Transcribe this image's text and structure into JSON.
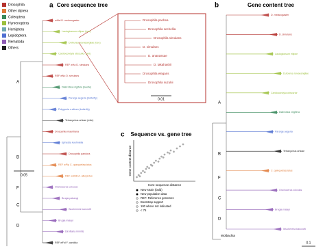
{
  "legend": [
    {
      "label": "Drosophila",
      "color": "#b5322e"
    },
    {
      "label": "Other diptera",
      "color": "#e07b39"
    },
    {
      "label": "Coleoptera",
      "color": "#3a8a5c"
    },
    {
      "label": "Hymenoptera",
      "color": "#9bbf3b"
    },
    {
      "label": "Hemiptera",
      "color": "#6fa8b0"
    },
    {
      "label": "Lepidoptera",
      "color": "#4f6fd1"
    },
    {
      "label": "Nematoda",
      "color": "#8e5bb5"
    },
    {
      "label": "Others",
      "color": "#222222"
    }
  ],
  "panel_a": {
    "letter": "a",
    "title": "Core sequence tree",
    "clades": [
      "A",
      "B",
      "F",
      "C",
      "D"
    ],
    "scale": "0.05",
    "labels": [
      "wMel D. melanogaster",
      "Lasioglossum ellipse (bee)",
      "Dufourea novaeangliae (bee)",
      "Cardiocondyla obscurior (ant)",
      "REF wHa D. simulans",
      "REF wNo D. simulans",
      "Diabrotica virgifera (beetle)",
      "Pararge aegeria (butterfly)",
      "Polygonia c-album (butterfly)",
      "Tetranychus urticae (mite)",
      "Drosophila mauritiana",
      "Ephestia kuehniella",
      "Drosophila pandora",
      "REF wPip C. quinquefasciatus",
      "REF wAlbB A. albopictus",
      "Onchocerca volvulus",
      "Brugia pahangi",
      "Wuchereria bancrofti",
      "Brugia malayi",
      "Dirofilaria immitis",
      "REF wFol F. candida"
    ]
  },
  "inset": {
    "scale": "0.01",
    "labels": [
      "Drosophila pachea",
      "Drosophila sechellia",
      "Drosophila simulans",
      "D. simulans",
      "D. ananassae",
      "D. takahashii",
      "Drosophila elegans",
      "Drosophila suzukii"
    ]
  },
  "panel_b": {
    "letter": "b",
    "title": "Gene content tree",
    "clades": [
      "A",
      "B",
      "F",
      "C",
      "D"
    ],
    "scale": "0.1",
    "outgroup": "Wolbachia",
    "labels": [
      "D. melanogaster",
      "D. simulans",
      "Lasioglossum ellipse",
      "Dufourea novaeangliae",
      "Cardiocondyla obscurior",
      "Diabrotica virgifera",
      "Pararge aegeria",
      "Tetranychus urticae",
      "C. quinquefasciatus",
      "Onchocerca volvulus",
      "Brugia malayi",
      "Wuchereria bancrofti"
    ]
  },
  "panel_c": {
    "letter": "c",
    "title": "Sequence vs. gene tree",
    "legend": [
      "New strain (bold)",
      "New population data",
      "REF: Reference genomes",
      "Bootstrap support",
      "100 where not indicated",
      "< 75"
    ]
  },
  "chart_data": {
    "type": "scatter",
    "xlabel": "Core sequence distance",
    "ylabel": "Gene content distance",
    "color": "#8a8a8a",
    "xlim": [
      0,
      1
    ],
    "ylim": [
      0,
      1
    ],
    "x": [
      0.05,
      0.08,
      0.1,
      0.12,
      0.15,
      0.18,
      0.2,
      0.22,
      0.25,
      0.28,
      0.3,
      0.33,
      0.36,
      0.4,
      0.42,
      0.45,
      0.48,
      0.5,
      0.55,
      0.58,
      0.6,
      0.65,
      0.7,
      0.75,
      0.8
    ],
    "y": [
      0.1,
      0.15,
      0.12,
      0.2,
      0.25,
      0.22,
      0.3,
      0.35,
      0.32,
      0.4,
      0.38,
      0.45,
      0.5,
      0.48,
      0.55,
      0.6,
      0.58,
      0.65,
      0.7,
      0.68,
      0.75,
      0.72,
      0.8,
      0.85,
      0.9
    ]
  }
}
